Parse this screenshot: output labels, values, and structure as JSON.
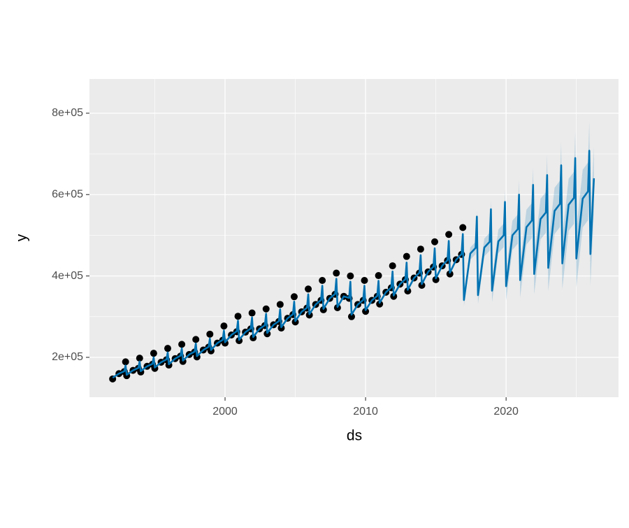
{
  "chart_data": {
    "type": "forecast",
    "x_label": "ds",
    "y_label": "y",
    "xlim": [
      1990.35,
      2028.0
    ],
    "xticks": [
      2000,
      2010,
      2020
    ],
    "x_minor_ticks": [
      1995,
      2005,
      2015,
      2025
    ],
    "ylim": [
      102000,
      884000
    ],
    "yticks": [
      {
        "value": 200000,
        "label": "2e+05"
      },
      {
        "value": 400000,
        "label": "4e+05"
      },
      {
        "value": 600000,
        "label": "6e+05"
      },
      {
        "value": 800000,
        "label": "8e+05"
      }
    ],
    "y_minor_ticks": [
      300000,
      500000,
      700000
    ],
    "grid": true,
    "observed": {
      "color": "#000000",
      "x": [
        1992,
        1992.45,
        1992.83,
        1992.92,
        1993,
        1993.45,
        1993.83,
        1993.92,
        1994,
        1994.45,
        1994.83,
        1994.92,
        1995,
        1995.45,
        1995.83,
        1995.92,
        1996,
        1996.45,
        1996.83,
        1996.92,
        1997,
        1997.45,
        1997.83,
        1997.92,
        1998,
        1998.45,
        1998.83,
        1998.92,
        1999,
        1999.45,
        1999.83,
        1999.92,
        2000,
        2000.45,
        2000.83,
        2000.92,
        2001,
        2001.45,
        2001.83,
        2001.92,
        2002,
        2002.45,
        2002.83,
        2002.92,
        2003,
        2003.45,
        2003.83,
        2003.92,
        2004,
        2004.45,
        2004.83,
        2004.92,
        2005,
        2005.45,
        2005.83,
        2005.92,
        2006,
        2006.45,
        2006.83,
        2006.92,
        2007,
        2007.45,
        2007.83,
        2007.92,
        2008,
        2008.45,
        2008.83,
        2008.92,
        2009,
        2009.45,
        2009.83,
        2009.92,
        2010,
        2010.45,
        2010.83,
        2010.92,
        2011,
        2011.45,
        2011.83,
        2011.92,
        2012,
        2012.45,
        2012.83,
        2012.92,
        2013,
        2013.45,
        2013.83,
        2013.92,
        2014,
        2014.45,
        2014.83,
        2014.92,
        2015,
        2015.45,
        2015.83,
        2015.92,
        2016,
        2016.45,
        2016.83,
        2016.92
      ],
      "values": [
        147000,
        160000,
        165000,
        189000,
        155000,
        168000,
        173000,
        198000,
        164000,
        178000,
        183000,
        210000,
        173000,
        188000,
        194000,
        222000,
        181000,
        197000,
        203000,
        232000,
        190000,
        207000,
        213000,
        244000,
        201000,
        218000,
        225000,
        257000,
        216000,
        235000,
        242000,
        277000,
        235000,
        255000,
        263000,
        301000,
        241000,
        262000,
        270000,
        309000,
        248000,
        270000,
        278000,
        319000,
        258000,
        280000,
        288000,
        330000,
        272000,
        296000,
        305000,
        349000,
        287000,
        312000,
        321000,
        368000,
        304000,
        330000,
        340000,
        389000,
        317000,
        345000,
        355000,
        407000,
        322000,
        350000,
        345000,
        400000,
        300000,
        330000,
        340000,
        389000,
        313000,
        340000,
        350000,
        401000,
        331000,
        360000,
        371000,
        425000,
        350000,
        380000,
        391000,
        448000,
        363000,
        395000,
        407000,
        466000,
        377000,
        410000,
        422000,
        484000,
        391000,
        425000,
        438000,
        502000,
        405000,
        440000,
        453000,
        519000
      ]
    },
    "forecast": {
      "color": "#0072B2",
      "x": [
        1992,
        1992.45,
        1992.83,
        1992.92,
        1993,
        1993.45,
        1993.83,
        1993.92,
        1994,
        1994.45,
        1994.83,
        1994.92,
        1995,
        1995.45,
        1995.83,
        1995.92,
        1996,
        1996.45,
        1996.83,
        1996.92,
        1997,
        1997.45,
        1997.83,
        1997.92,
        1998,
        1998.45,
        1998.83,
        1998.92,
        1999,
        1999.45,
        1999.83,
        1999.92,
        2000,
        2000.45,
        2000.83,
        2000.92,
        2001,
        2001.45,
        2001.83,
        2001.92,
        2002,
        2002.45,
        2002.83,
        2002.92,
        2003,
        2003.45,
        2003.83,
        2003.92,
        2004,
        2004.45,
        2004.83,
        2004.92,
        2005,
        2005.45,
        2005.83,
        2005.92,
        2006,
        2006.45,
        2006.83,
        2006.92,
        2007,
        2007.45,
        2007.83,
        2007.92,
        2008,
        2008.45,
        2008.83,
        2008.92,
        2009,
        2009.45,
        2009.83,
        2009.92,
        2010,
        2010.45,
        2010.83,
        2010.92,
        2011,
        2011.45,
        2011.83,
        2011.92,
        2012,
        2012.45,
        2012.83,
        2012.92,
        2013,
        2013.45,
        2013.83,
        2013.92,
        2014,
        2014.45,
        2014.83,
        2014.92,
        2015,
        2015.45,
        2015.83,
        2015.92,
        2016,
        2016.45,
        2016.83,
        2016.92,
        2017,
        2017.45,
        2017.83,
        2017.92,
        2018,
        2018.45,
        2018.83,
        2018.92,
        2019,
        2019.45,
        2019.83,
        2019.92,
        2020,
        2020.45,
        2020.83,
        2020.92,
        2021,
        2021.45,
        2021.83,
        2021.92,
        2022,
        2022.45,
        2022.83,
        2022.92,
        2023,
        2023.45,
        2023.83,
        2023.92,
        2024,
        2024.45,
        2024.83,
        2024.92,
        2025,
        2025.45,
        2025.83,
        2025.92,
        2026,
        2026.25
      ],
      "values": [
        150000,
        160000,
        166000,
        180000,
        157000,
        168000,
        174000,
        190000,
        166000,
        178000,
        184000,
        200000,
        175000,
        188000,
        195000,
        212000,
        183000,
        197000,
        204000,
        222000,
        192000,
        207000,
        214000,
        234000,
        203000,
        218000,
        226000,
        246000,
        218000,
        235000,
        243000,
        266000,
        237000,
        255000,
        264000,
        290000,
        243000,
        262000,
        271000,
        298000,
        250000,
        270000,
        279000,
        307000,
        260000,
        280000,
        289000,
        318000,
        274000,
        296000,
        306000,
        337000,
        289000,
        312000,
        322000,
        355000,
        306000,
        330000,
        341000,
        376000,
        319000,
        345000,
        356000,
        393000,
        324000,
        350000,
        346000,
        386000,
        305000,
        330000,
        341000,
        376000,
        316000,
        340000,
        351000,
        388000,
        334000,
        360000,
        372000,
        411000,
        352000,
        380000,
        392000,
        433000,
        366000,
        395000,
        408000,
        451000,
        380000,
        410000,
        423000,
        468000,
        394000,
        425000,
        439000,
        486000,
        408000,
        440000,
        454000,
        503000,
        341000,
        455000,
        469000,
        546000,
        353000,
        470000,
        484000,
        564000,
        364000,
        485000,
        500000,
        582000,
        375000,
        500000,
        515000,
        600000,
        390000,
        520000,
        536000,
        624000,
        405000,
        540000,
        556000,
        648000,
        420000,
        560000,
        577000,
        672000,
        431000,
        575000,
        592000,
        690000,
        443000,
        590000,
        608000,
        708000,
        454000,
        640000
      ]
    },
    "interval": {
      "color": "#0072B2",
      "x": [
        2017,
        2017.45,
        2017.83,
        2017.92,
        2018,
        2018.45,
        2018.83,
        2018.92,
        2019,
        2019.45,
        2019.83,
        2019.92,
        2020,
        2020.45,
        2020.83,
        2020.92,
        2021,
        2021.45,
        2021.83,
        2021.92,
        2022,
        2022.45,
        2022.83,
        2022.92,
        2023,
        2023.45,
        2023.83,
        2023.92,
        2024,
        2024.45,
        2024.83,
        2024.92,
        2025,
        2025.45,
        2025.83,
        2025.92,
        2026,
        2026.25
      ],
      "lower": [
        326000,
        440000,
        454000,
        531000,
        331000,
        448000,
        462000,
        542000,
        335000,
        456000,
        471000,
        553000,
        339000,
        464000,
        479000,
        564000,
        347000,
        477000,
        493000,
        581000,
        355000,
        490000,
        506000,
        598000,
        363000,
        503000,
        520000,
        615000,
        367000,
        511000,
        528000,
        626000,
        372000,
        519000,
        537000,
        637000,
        376000,
        562000
      ],
      "upper": [
        356000,
        470000,
        484000,
        561000,
        375000,
        492000,
        506000,
        586000,
        393000,
        514000,
        529000,
        611000,
        411000,
        536000,
        551000,
        636000,
        433000,
        563000,
        579000,
        667000,
        455000,
        590000,
        606000,
        698000,
        477000,
        617000,
        634000,
        729000,
        495000,
        639000,
        656000,
        754000,
        514000,
        661000,
        679000,
        779000,
        532000,
        718000
      ]
    }
  }
}
